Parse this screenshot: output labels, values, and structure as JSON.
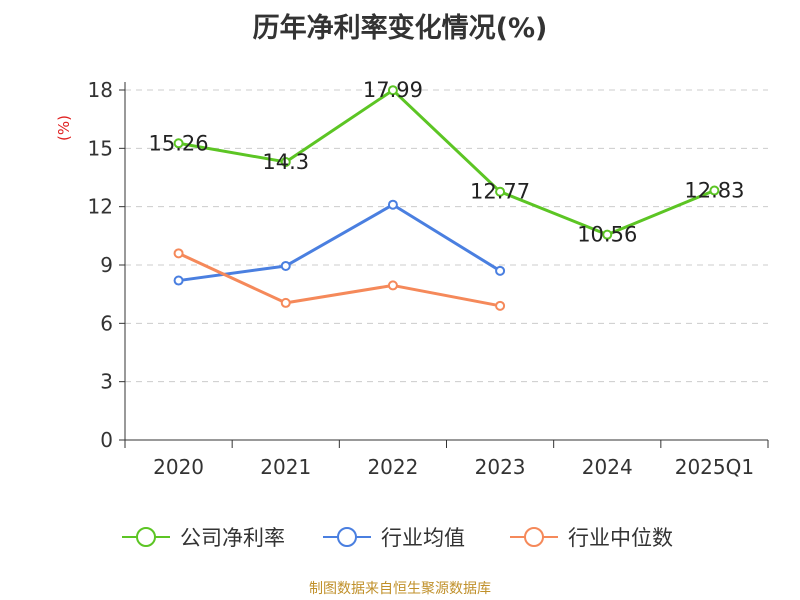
{
  "title": "历年净利率变化情况(%)",
  "footer": "制图数据来自恒生聚源数据库",
  "chart_data": {
    "type": "line",
    "title": "历年净利率变化情况(%)",
    "ylabel": "(%)",
    "xlabel": "",
    "categories": [
      "2020",
      "2021",
      "2022",
      "2023",
      "2024",
      "2025Q1"
    ],
    "yticks": [
      "0",
      "3",
      "6",
      "9",
      "12",
      "15",
      "18"
    ],
    "ylim": [
      0,
      18
    ],
    "grid": true,
    "legend_position": "bottom",
    "series": [
      {
        "name": "公司净利率",
        "color": "#5cc524",
        "values": [
          15.26,
          14.3,
          17.99,
          12.77,
          10.56,
          12.83
        ],
        "labels": [
          "15.26",
          "14.3",
          "17.99",
          "12.77",
          "10.56",
          "12.83"
        ]
      },
      {
        "name": "行业均值",
        "color": "#4a7fe0",
        "values": [
          8.2,
          8.95,
          12.1,
          8.7,
          null,
          null
        ]
      },
      {
        "name": "行业中位数",
        "color": "#f5895a",
        "values": [
          9.6,
          7.05,
          7.95,
          6.9,
          null,
          null
        ]
      }
    ],
    "colors": {
      "axis": "#333333",
      "grid": "#cccccc",
      "ylabel": "#e02020"
    }
  }
}
